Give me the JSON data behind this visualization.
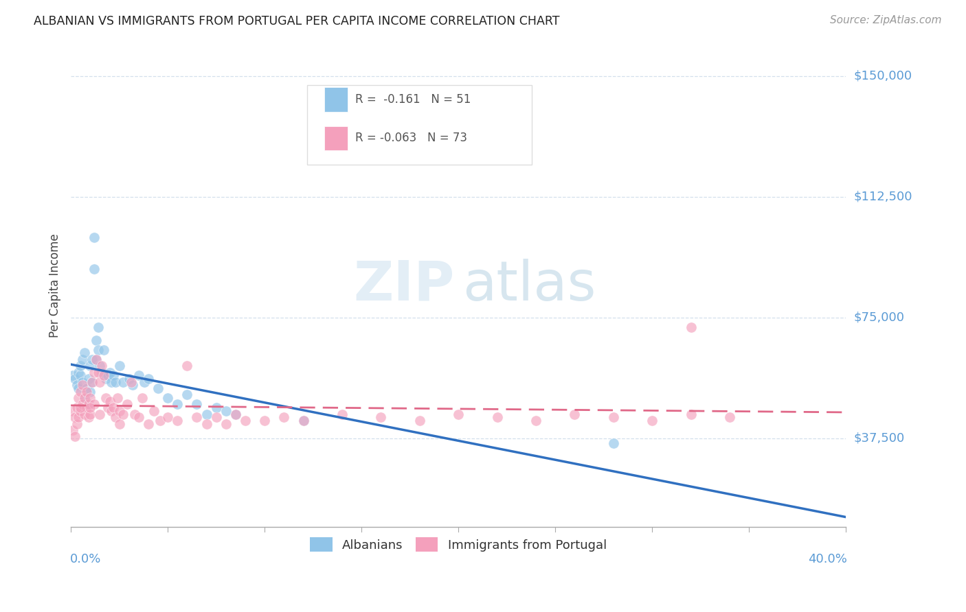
{
  "title": "ALBANIAN VS IMMIGRANTS FROM PORTUGAL PER CAPITA INCOME CORRELATION CHART",
  "source": "Source: ZipAtlas.com",
  "ylabel": "Per Capita Income",
  "xlim": [
    0.0,
    0.4
  ],
  "ylim": [
    10000,
    160000
  ],
  "ytick_vals": [
    37500,
    75000,
    112500,
    150000
  ],
  "ytick_labels": [
    "$37,500",
    "$75,000",
    "$112,500",
    "$150,000"
  ],
  "color_blue_scatter": "#90c4e8",
  "color_pink_scatter": "#f4a0bc",
  "color_blue_line": "#3070c0",
  "color_pink_line": "#e06888",
  "color_grid": "#c8d8e8",
  "color_axis_label": "#5b9bd5",
  "watermark_zip_color": "#cce0f0",
  "watermark_atlas_color": "#a8c8dc",
  "albanians_x": [
    0.001,
    0.002,
    0.003,
    0.004,
    0.004,
    0.005,
    0.005,
    0.006,
    0.006,
    0.007,
    0.007,
    0.008,
    0.009,
    0.009,
    0.01,
    0.01,
    0.011,
    0.011,
    0.012,
    0.012,
    0.013,
    0.013,
    0.014,
    0.014,
    0.015,
    0.016,
    0.017,
    0.018,
    0.019,
    0.02,
    0.021,
    0.022,
    0.023,
    0.025,
    0.027,
    0.03,
    0.032,
    0.035,
    0.038,
    0.04,
    0.045,
    0.05,
    0.055,
    0.06,
    0.065,
    0.07,
    0.075,
    0.08,
    0.085,
    0.12,
    0.28
  ],
  "albanians_y": [
    57000,
    56000,
    54000,
    53000,
    58000,
    57000,
    60000,
    62000,
    55000,
    50000,
    64000,
    53000,
    56000,
    48000,
    60000,
    52000,
    62000,
    55000,
    100000,
    90000,
    68000,
    62000,
    65000,
    72000,
    60000,
    58000,
    65000,
    56000,
    57000,
    58000,
    55000,
    57000,
    55000,
    60000,
    55000,
    56000,
    54000,
    57000,
    55000,
    56000,
    53000,
    50000,
    48000,
    51000,
    48000,
    45000,
    47000,
    46000,
    45000,
    43000,
    36000
  ],
  "portugal_x": [
    0.001,
    0.001,
    0.002,
    0.002,
    0.003,
    0.003,
    0.004,
    0.004,
    0.005,
    0.005,
    0.006,
    0.006,
    0.007,
    0.007,
    0.008,
    0.008,
    0.009,
    0.009,
    0.01,
    0.01,
    0.011,
    0.012,
    0.012,
    0.013,
    0.014,
    0.015,
    0.016,
    0.017,
    0.018,
    0.019,
    0.02,
    0.021,
    0.022,
    0.023,
    0.024,
    0.025,
    0.027,
    0.029,
    0.031,
    0.033,
    0.035,
    0.037,
    0.04,
    0.043,
    0.046,
    0.05,
    0.055,
    0.06,
    0.065,
    0.07,
    0.075,
    0.08,
    0.085,
    0.09,
    0.1,
    0.11,
    0.12,
    0.14,
    0.16,
    0.18,
    0.2,
    0.22,
    0.24,
    0.26,
    0.28,
    0.3,
    0.32,
    0.34,
    0.005,
    0.01,
    0.015,
    0.025,
    0.32
  ],
  "portugal_y": [
    46000,
    40000,
    44000,
    38000,
    47000,
    42000,
    50000,
    44000,
    52000,
    46000,
    54000,
    48000,
    50000,
    45000,
    47000,
    52000,
    44000,
    48000,
    50000,
    45000,
    55000,
    58000,
    48000,
    62000,
    58000,
    55000,
    60000,
    57000,
    50000,
    47000,
    49000,
    46000,
    47000,
    44000,
    50000,
    46000,
    45000,
    48000,
    55000,
    45000,
    44000,
    50000,
    42000,
    46000,
    43000,
    44000,
    43000,
    60000,
    44000,
    42000,
    44000,
    42000,
    45000,
    43000,
    43000,
    44000,
    43000,
    45000,
    44000,
    43000,
    45000,
    44000,
    43000,
    45000,
    44000,
    43000,
    45000,
    44000,
    47000,
    47000,
    45000,
    42000,
    72000
  ]
}
